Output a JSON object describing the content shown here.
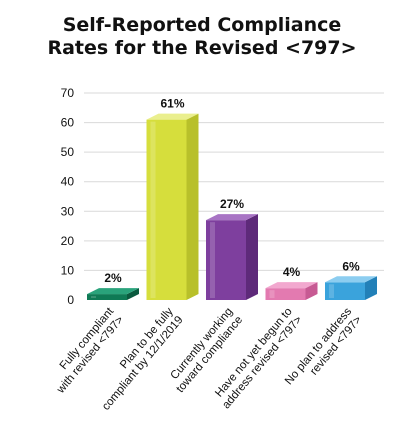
{
  "chart_data": {
    "type": "bar",
    "title_lines": [
      "Self-Reported Compliance",
      "Rates for the Revised <797>"
    ],
    "categories": [
      [
        "Fully compliant",
        "with revised <797>"
      ],
      [
        "Plan to be fully",
        "compliant by 12/1/2019"
      ],
      [
        "Currently working",
        "toward compliance"
      ],
      [
        "Have not yet begun to",
        "address revised <797>"
      ],
      [
        "No plan to address",
        "revised <797>"
      ]
    ],
    "values": [
      2,
      61,
      27,
      4,
      6
    ],
    "data_labels": [
      "2%",
      "61%",
      "27%",
      "4%",
      "6%"
    ],
    "y_ticks": [
      "0",
      "10",
      "20",
      "30",
      "40",
      "50",
      "60",
      "70"
    ],
    "ylim": [
      0,
      70
    ],
    "grid": true,
    "legend": "none",
    "bar_colors": [
      {
        "front": "#0f7a55",
        "side": "#0a5a3e",
        "top": "#2aa37b"
      },
      {
        "front": "#d6de3c",
        "side": "#b8c02a",
        "top": "#eaef8e"
      },
      {
        "front": "#7e3f9e",
        "side": "#5e2a7a",
        "top": "#a874c4"
      },
      {
        "front": "#e37ab0",
        "side": "#c75a93",
        "top": "#f2a8cf"
      },
      {
        "front": "#3aa3dc",
        "side": "#2280b8",
        "top": "#8ccdf0"
      }
    ]
  }
}
